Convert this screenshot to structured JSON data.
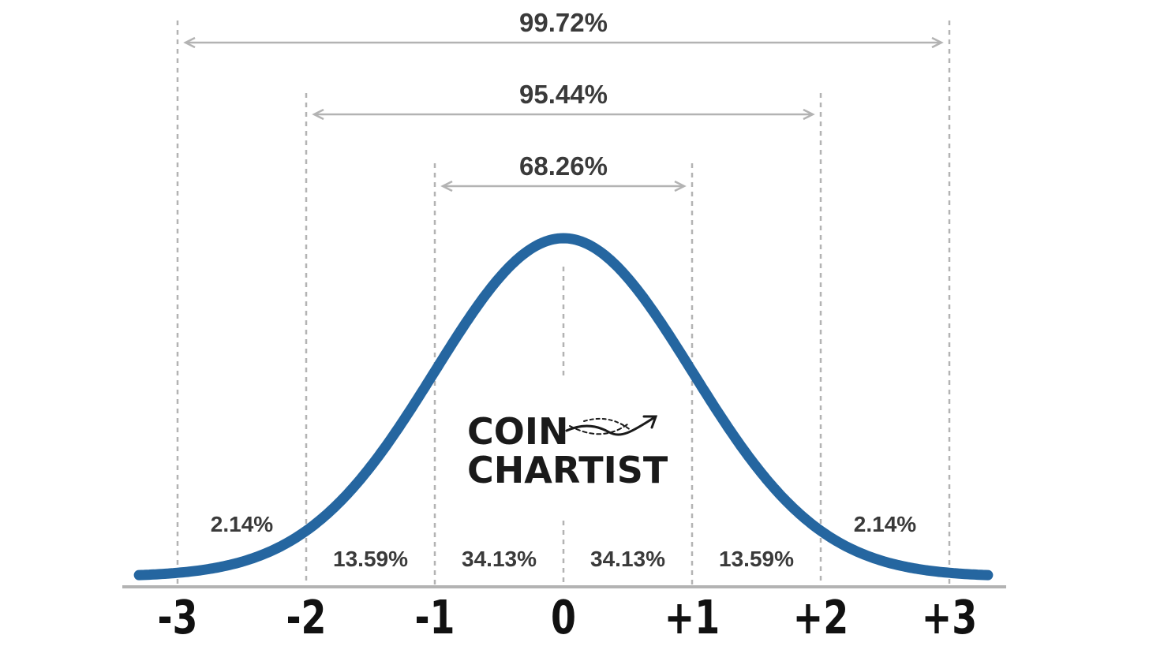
{
  "chart_data": {
    "type": "line",
    "title": "",
    "xlabel": "",
    "ylabel": "",
    "xlim": [
      -3.3,
      3.3
    ],
    "ticks": [
      "-3",
      "-2",
      "-1",
      "0",
      "+1",
      "+2",
      "+3"
    ],
    "tick_values": [
      -3,
      -2,
      -1,
      0,
      1,
      2,
      3
    ],
    "series": [
      {
        "color": "#2566a0",
        "curve": "standard-normal-density"
      }
    ],
    "region_labels": [
      {
        "text": "2.14%",
        "x": -2.5,
        "row": "upper"
      },
      {
        "text": "13.59%",
        "x": -1.5,
        "row": "lower"
      },
      {
        "text": "34.13%",
        "x": -0.5,
        "row": "lower"
      },
      {
        "text": "34.13%",
        "x": 0.5,
        "row": "lower"
      },
      {
        "text": "13.59%",
        "x": 1.5,
        "row": "lower"
      },
      {
        "text": "2.14%",
        "x": 2.5,
        "row": "upper"
      }
    ],
    "ranges": [
      {
        "label": "99.72%",
        "from": -3,
        "to": 3
      },
      {
        "label": "95.44%",
        "from": -2,
        "to": 2
      },
      {
        "label": "68.26%",
        "from": -1,
        "to": 1
      }
    ],
    "grid": "dashed verticals at each tick",
    "colors": {
      "curve": "#2566a0",
      "guides": "#b3b3b3",
      "text": "#3a3a3a",
      "axis": "#b3b3b3",
      "ticks": "#111111"
    }
  },
  "logo": {
    "line1": "COIN",
    "line2": "CHARTIST"
  }
}
